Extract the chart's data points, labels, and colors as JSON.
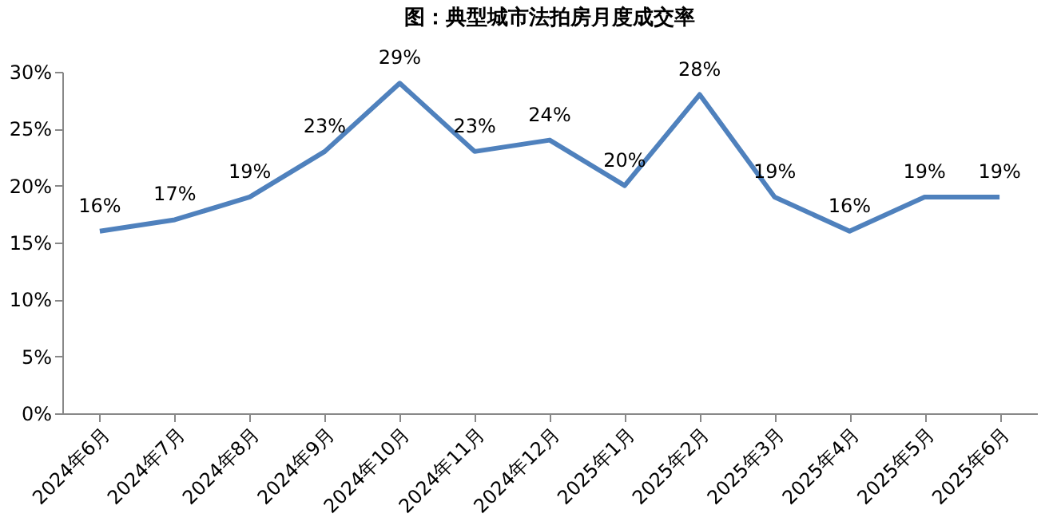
{
  "chart_data": {
    "type": "line",
    "title": "图：典型城市法拍房月度成交率",
    "categories": [
      "2024年6月",
      "2024年7月",
      "2024年8月",
      "2024年9月",
      "2024年10月",
      "2024年11月",
      "2024年12月",
      "2025年1月",
      "2025年2月",
      "2025年3月",
      "2025年4月",
      "2025年5月",
      "2025年6月"
    ],
    "series": [
      {
        "color": "#4f81bd",
        "values": [
          16,
          17,
          19,
          23,
          29,
          23,
          24,
          20,
          28,
          19,
          16,
          19,
          19
        ]
      }
    ],
    "ylim": [
      0,
      30
    ],
    "yticks": [
      {
        "value": 0,
        "label": "0%"
      },
      {
        "value": 5,
        "label": "5%"
      },
      {
        "value": 10,
        "label": "10%"
      },
      {
        "value": 15,
        "label": "15%"
      },
      {
        "value": 20,
        "label": "20%"
      },
      {
        "value": 25,
        "label": "25%"
      },
      {
        "value": 30,
        "label": "30%"
      }
    ],
    "value_labels": [
      "16%",
      "17%",
      "19%",
      "23%",
      "29%",
      "23%",
      "24%",
      "20%",
      "28%",
      "19%",
      "16%",
      "19%",
      "19%"
    ],
    "grid": false,
    "marker": "none",
    "line_style": "solid"
  }
}
